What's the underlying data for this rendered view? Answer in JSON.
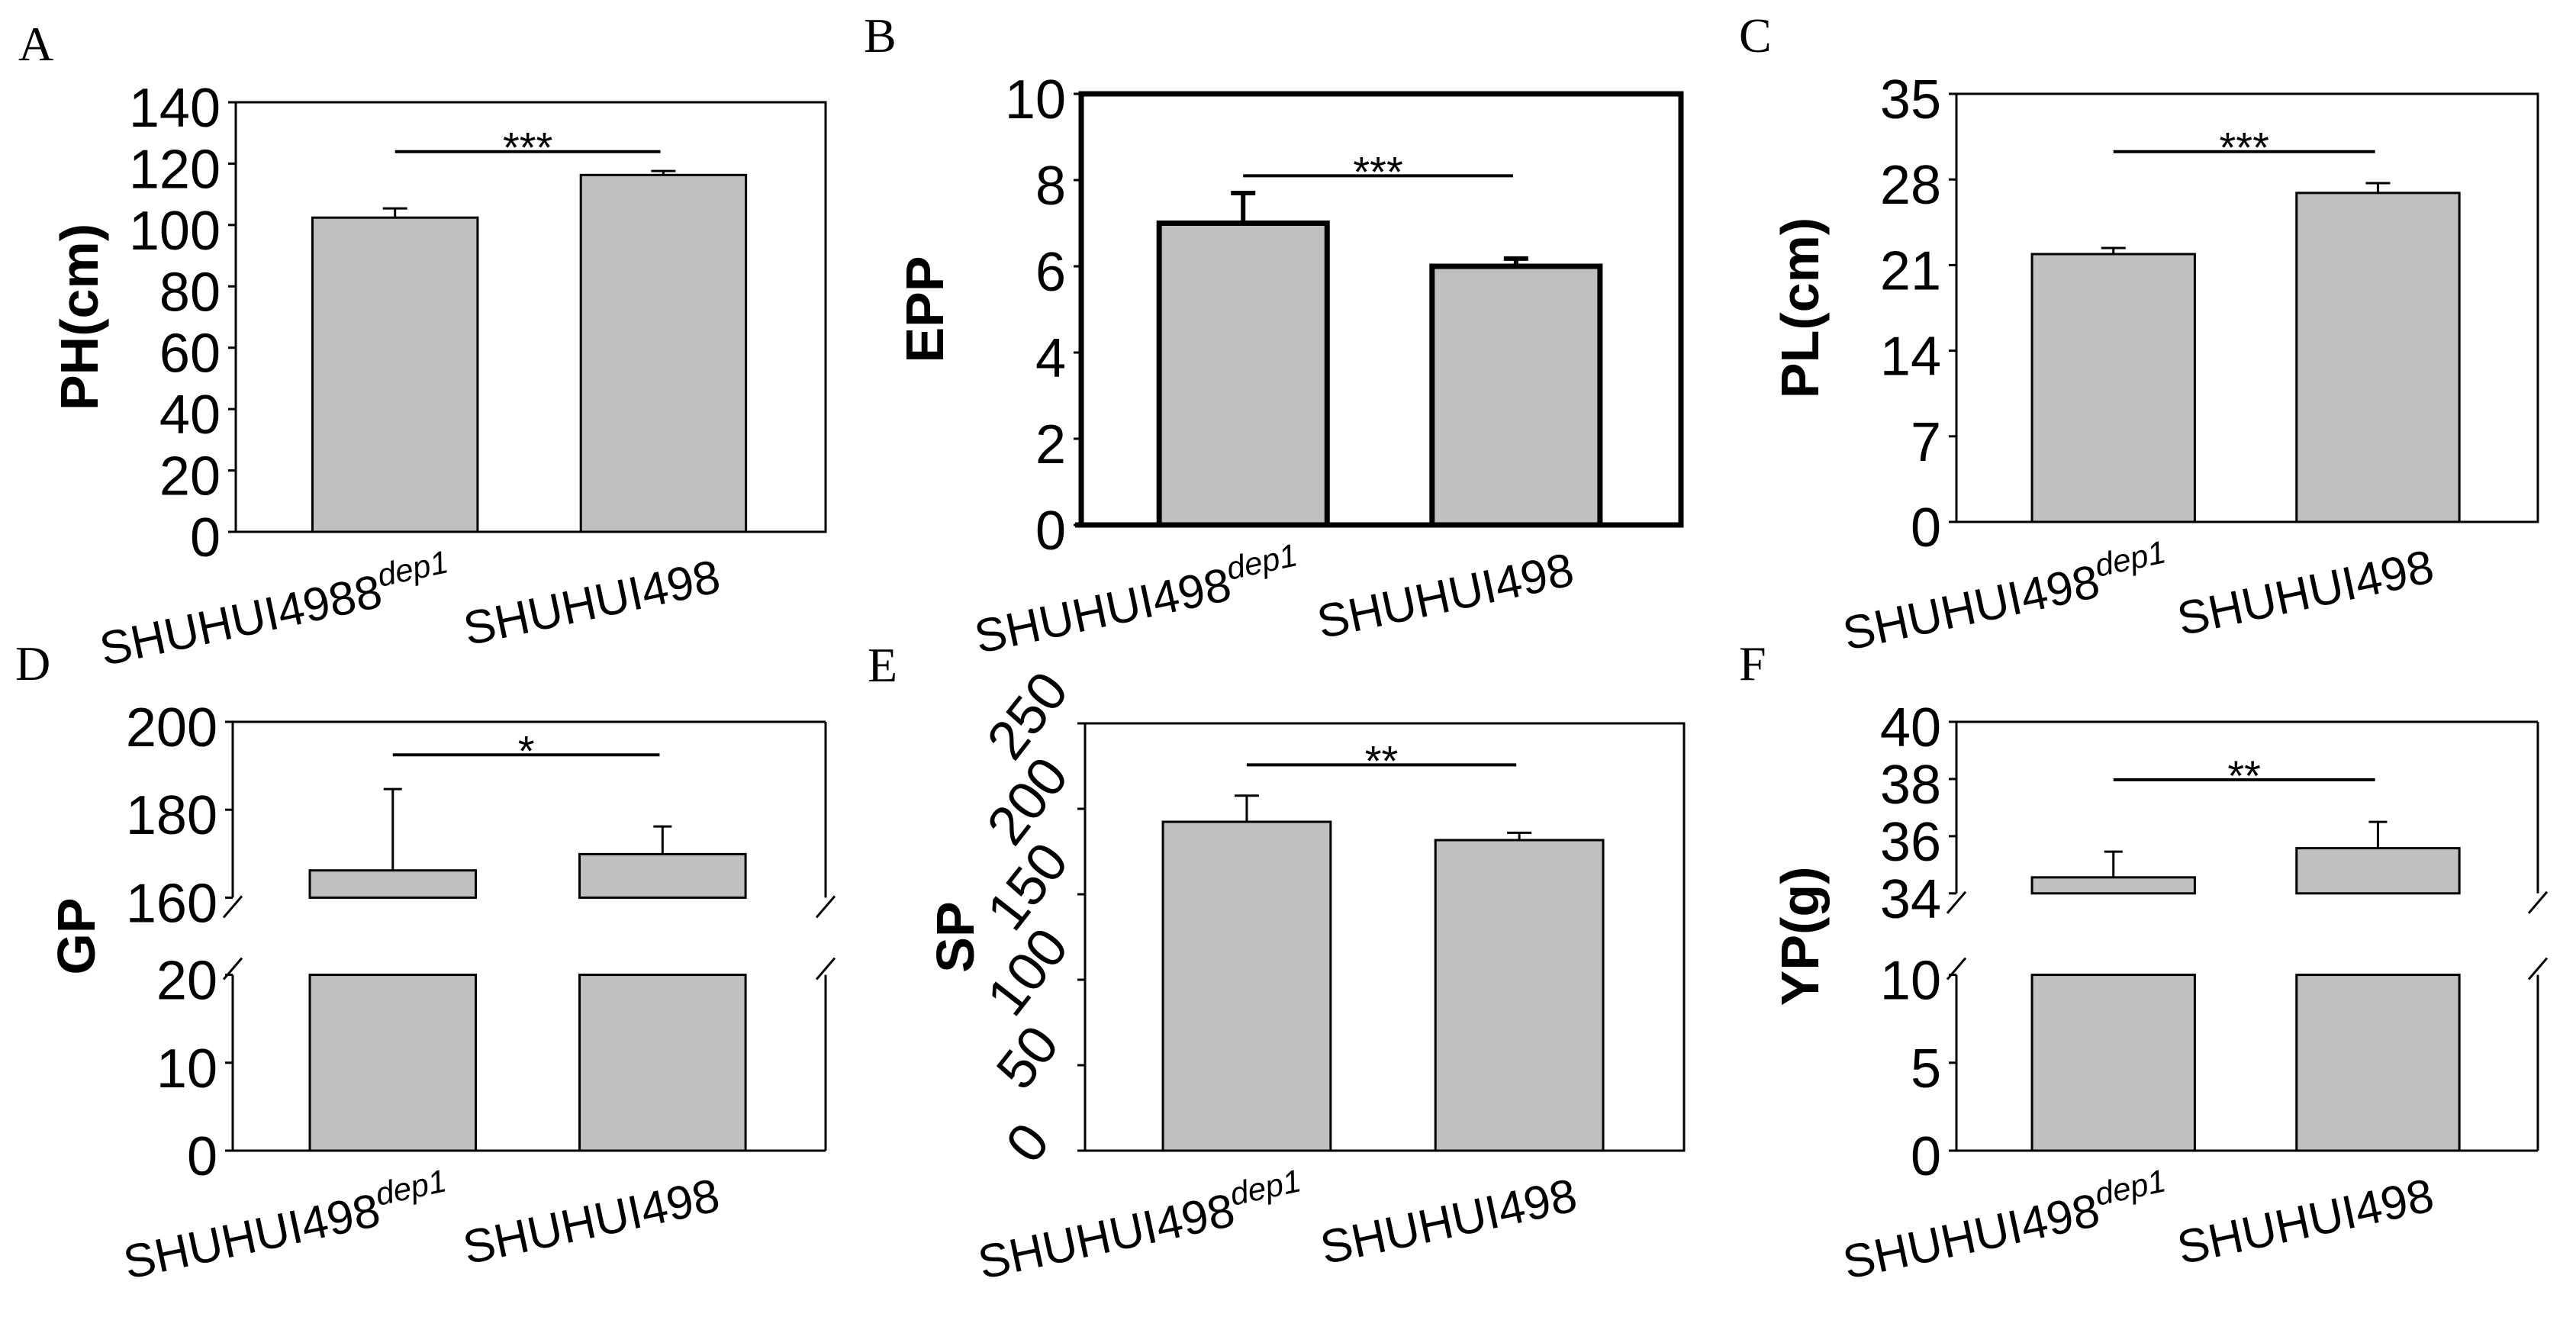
{
  "colors": {
    "bar_fill": "#c0c0c0",
    "stroke": "#000000"
  },
  "chart_data": [
    {
      "panel": "A",
      "type": "bar",
      "ylabel": "PH(cm)",
      "categories": [
        {
          "base": "SHUHUI4988",
          "sup": "dep1"
        },
        {
          "base": "SHUHUI498",
          "sup": ""
        }
      ],
      "values": [
        102.4,
        116.3
      ],
      "errors": [
        3.0,
        1.3
      ],
      "ylim": [
        0,
        140
      ],
      "yticks": [
        "0",
        "20",
        "40",
        "60",
        "80",
        "100",
        "120",
        "140"
      ],
      "significance": "***",
      "grid": false,
      "legend": "none"
    },
    {
      "panel": "B",
      "type": "bar",
      "ylabel": "EPP",
      "categories": [
        {
          "base": "SHUHUI498",
          "sup": "dep1"
        },
        {
          "base": "SHUHUI498",
          "sup": ""
        }
      ],
      "values": [
        7.0,
        6.0
      ],
      "errors": [
        0.7,
        0.18
      ],
      "ylim": [
        0,
        10
      ],
      "yticks": [
        "0",
        "2",
        "4",
        "6",
        "8",
        "10"
      ],
      "significance": "***",
      "grid": false,
      "legend": "none"
    },
    {
      "panel": "C",
      "type": "bar",
      "ylabel": "PL(cm)",
      "categories": [
        {
          "base": "SHUHUI498",
          "sup": "dep1"
        },
        {
          "base": "SHUHUI498",
          "sup": ""
        }
      ],
      "values": [
        21.9,
        26.9
      ],
      "errors": [
        0.5,
        0.8
      ],
      "ylim": [
        0,
        35
      ],
      "yticks": [
        "0",
        "7",
        "14",
        "21",
        "28",
        "35"
      ],
      "significance": "***",
      "grid": false,
      "legend": "none"
    },
    {
      "panel": "D",
      "type": "bar",
      "ylabel": "GP",
      "broken_axis": true,
      "categories": [
        {
          "base": "SHUHUI498",
          "sup": "dep1"
        },
        {
          "base": "SHUHUI498",
          "sup": ""
        }
      ],
      "values": [
        166.2,
        169.9
      ],
      "errors": [
        18.5,
        6.3
      ],
      "ylim_top": [
        160,
        200
      ],
      "yticks_top": [
        "160",
        "180",
        "200"
      ],
      "ylim_bottom": [
        0,
        20
      ],
      "yticks_bottom": [
        "0",
        "10",
        "20"
      ],
      "significance": "*",
      "grid": false,
      "legend": "none"
    },
    {
      "panel": "E",
      "type": "bar",
      "ylabel": "SP",
      "categories": [
        {
          "base": "SHUHUI498",
          "sup": "dep1"
        },
        {
          "base": "SHUHUI498",
          "sup": ""
        }
      ],
      "values": [
        192.4,
        181.7
      ],
      "errors": [
        15.3,
        4.3
      ],
      "ylim": [
        0,
        250
      ],
      "yticks": [
        "0",
        "50",
        "100",
        "150",
        "200",
        "250"
      ],
      "significance": "**",
      "grid": false,
      "legend": "none"
    },
    {
      "panel": "F",
      "type": "bar",
      "ylabel": "YP(g)",
      "broken_axis": true,
      "categories": [
        {
          "base": "SHUHUI498",
          "sup": "dep1"
        },
        {
          "base": "SHUHUI498",
          "sup": ""
        }
      ],
      "values": [
        34.56,
        35.58
      ],
      "errors": [
        0.9,
        0.92
      ],
      "ylim_top": [
        34,
        40
      ],
      "yticks_top": [
        "34",
        "36",
        "38",
        "40"
      ],
      "ylim_bottom": [
        0,
        10
      ],
      "yticks_bottom": [
        "0",
        "5",
        "10"
      ],
      "significance": "**",
      "grid": false,
      "legend": "none"
    }
  ]
}
